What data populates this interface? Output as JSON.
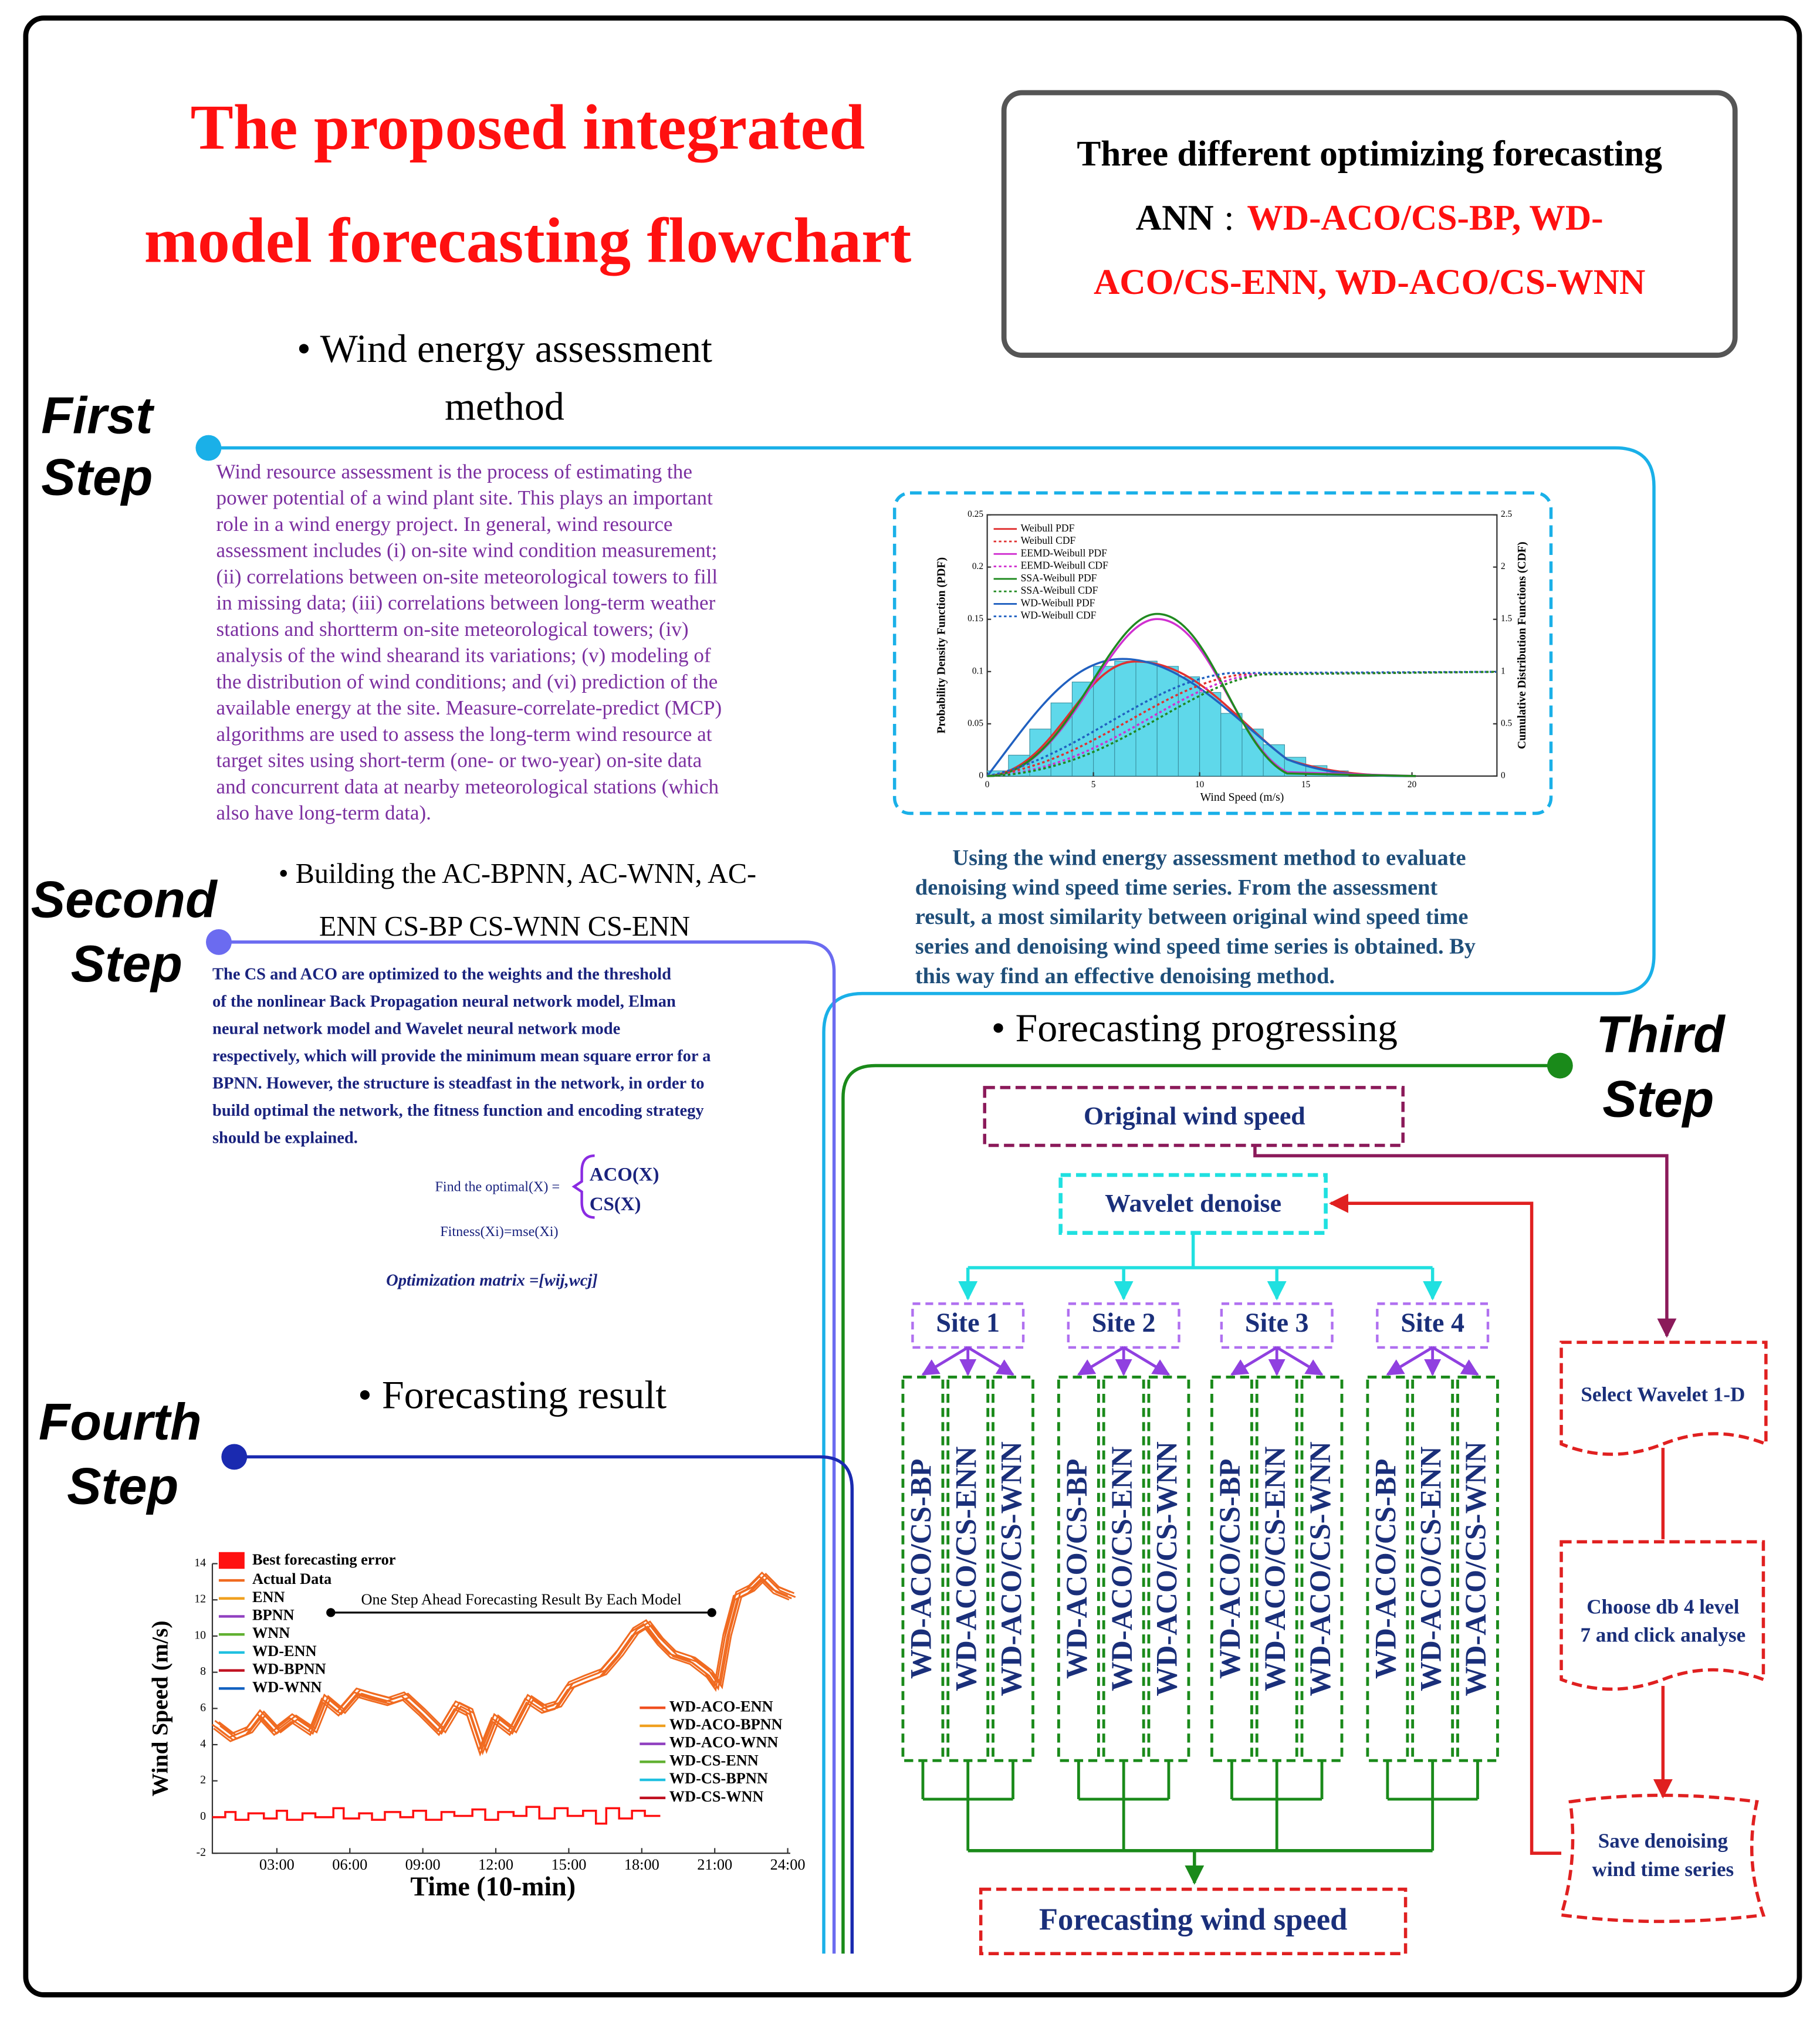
{
  "header": {
    "title": [
      "The proposed integrated",
      "model forecasting flowchart"
    ]
  },
  "info_box": {
    "line1": "Three different optimizing forecasting",
    "ann": "ANN",
    "sep": ":",
    "line2_models": "WD-ACO/CS-BP, WD-",
    "line3": "ACO/CS-ENN, WD-ACO/CS-WNN"
  },
  "steps": [
    [
      "First",
      "Step"
    ],
    [
      "Second",
      "Step"
    ],
    [
      "Third",
      "Step"
    ],
    [
      "Fourth",
      "Step"
    ]
  ],
  "step1": {
    "heading": [
      "• Wind energy assessment",
      "method"
    ],
    "paragraph": [
      "Wind resource assessment is the process of estimating the",
      "power potential of a wind plant site. This plays an important",
      "role in a wind energy project. In general, wind resource",
      "assessment includes (i) on-site wind condition measurement;",
      "(ii) correlations between on-site meteorological towers to fill",
      "in missing data; (iii) correlations between long-term weather",
      "stations and shortterm on-site meteorological towers; (iv)",
      "analysis of the wind shearand its variations; (v) modeling of",
      "the distribution of wind conditions; and (vi) prediction of the",
      "available energy at the site. Measure-correlate-predict (MCP)",
      "algorithms are used to assess the long-term wind resource at",
      "target sites using short-term (one- or two-year) on-site data",
      "and concurrent data at nearby meteorological stations (which",
      "also have long-term data)."
    ],
    "chart": {
      "type": "histogram",
      "xlabel": "Wind Speed (m/s)",
      "ylabel": "Probability Density Function (PDF)",
      "y2label": "Cumulative Distribution Functions (CDF)",
      "xlim": [
        0,
        24
      ],
      "xticks": [
        0,
        5,
        10,
        15,
        20
      ],
      "ylim": [
        0,
        0.25
      ],
      "yticks": [
        0,
        0.05,
        0.1,
        0.15,
        0.2,
        0.25
      ],
      "y2lim": [
        0,
        2.5
      ],
      "y2ticks": [
        0,
        0.5,
        1,
        1.5,
        2,
        2.5
      ],
      "bins": [
        0,
        1,
        2,
        3,
        4,
        5,
        6,
        7,
        8,
        9,
        10,
        11,
        12,
        13,
        14,
        15,
        16,
        17
      ],
      "values": [
        0.005,
        0.02,
        0.045,
        0.07,
        0.09,
        0.105,
        0.11,
        0.11,
        0.105,
        0.095,
        0.08,
        0.06,
        0.045,
        0.03,
        0.018,
        0.01,
        0.005
      ],
      "color": "#5fd8ea",
      "legend": [
        {
          "name": "Weibull PDF",
          "color": "#e03030",
          "dash": false
        },
        {
          "name": "Weibull CDF",
          "color": "#e03030",
          "dash": true
        },
        {
          "name": "EEMD-Weibull PDF",
          "color": "#d030d0",
          "dash": false
        },
        {
          "name": "EEMD-Weibull CDF",
          "color": "#d030d0",
          "dash": true
        },
        {
          "name": "SSA-Weibull PDF",
          "color": "#208a20",
          "dash": false
        },
        {
          "name": "SSA-Weibull CDF",
          "color": "#208a20",
          "dash": true
        },
        {
          "name": "WD-Weibull PDF",
          "color": "#2060c0",
          "dash": false
        },
        {
          "name": "WD-Weibull CDF",
          "color": "#2060c0",
          "dash": true
        }
      ]
    },
    "summary": [
      "Using the wind energy assessment method to evaluate",
      "denoising  wind  speed  time  series. From the assessment",
      "result, a most similarity between original wind speed time",
      "series and denoising wind speed time series is obtained. By",
      "this way find an effective denoising method."
    ]
  },
  "step2": {
    "heading": [
      "• Building the AC-BPNN, AC-WNN, AC-",
      "ENN CS-BP CS-WNN CS-ENN"
    ],
    "paragraph": [
      "The  CS and ACO  are  optimized  to  the weights   and   the   threshold",
      "of   the   nonlinear  Back Propagation  neural  network  model,  Elman",
      "neural  network  model and Wavelet neural  network  mode",
      "respectively, which will provide the minimum mean square error for a",
      "BPNN. However, the structure is steadfast in the network, in order to",
      "build  optimal  the  network,  the fitness function and encoding strategy",
      "should be explained."
    ],
    "formula": {
      "find": "Find the optimal(X) =",
      "aco": "ACO(X)",
      "cs": "CS(X)",
      "fitness": "Fitness(Xi)=mse(Xi)",
      "matrix": "Optimization matrix =[wij,wcj]"
    }
  },
  "step3": {
    "heading": "• Forecasting progressing",
    "original": "Original wind speed",
    "denoise": "Wavelet denoise",
    "sites": [
      "Site 1",
      "Site 2",
      "Site 3",
      "Site 4"
    ],
    "models": [
      "WD-ACO/CS-BP",
      "WD-ACO/CS-ENN",
      "WD-ACO/CS-WNN"
    ],
    "output": "Forecasting wind speed",
    "wavelet_steps": [
      [
        "Select Wavelet 1-D"
      ],
      [
        "Choose db 4 level",
        "7 and click analyse"
      ],
      [
        "Save denoising",
        "wind time series"
      ]
    ]
  },
  "step4": {
    "heading": "• Forecasting result",
    "chart": {
      "type": "line",
      "ylabel": "Wind Speed (m/s)",
      "xlabel": "Time (10-min)",
      "annotation": "One Step Ahead Forecasting Result By Each Model",
      "ylim": [
        -2,
        14
      ],
      "yticks": [
        -2,
        0,
        2,
        4,
        6,
        8,
        10,
        12,
        14
      ],
      "xticks": [
        "03:00",
        "06:00",
        "09:00",
        "12:00",
        "15:00",
        "18:00",
        "21:00",
        "24:00"
      ],
      "error_name": "Best forecasting error",
      "error_color": "#ff1010",
      "legend_left": [
        {
          "name": "Actual Data",
          "color": "#f06a20"
        },
        {
          "name": "ENN",
          "color": "#f0a020"
        },
        {
          "name": "BPNN",
          "color": "#9040c0"
        },
        {
          "name": "WNN",
          "color": "#60b030"
        },
        {
          "name": "WD-ENN",
          "color": "#20c0e0"
        },
        {
          "name": "WD-BPNN",
          "color": "#c01020"
        },
        {
          "name": "WD-WNN",
          "color": "#1060c0"
        }
      ],
      "legend_right": [
        {
          "name": "WD-ACO-ENN",
          "color": "#f05020"
        },
        {
          "name": "WD-ACO-BPNN",
          "color": "#f0a020"
        },
        {
          "name": "WD-ACO-WNN",
          "color": "#9040c0"
        },
        {
          "name": "WD-CS-ENN",
          "color": "#60b030"
        },
        {
          "name": "WD-CS-BPNN",
          "color": "#20c0e0"
        },
        {
          "name": "WD-CS-WNN",
          "color": "#c01020"
        }
      ]
    }
  }
}
